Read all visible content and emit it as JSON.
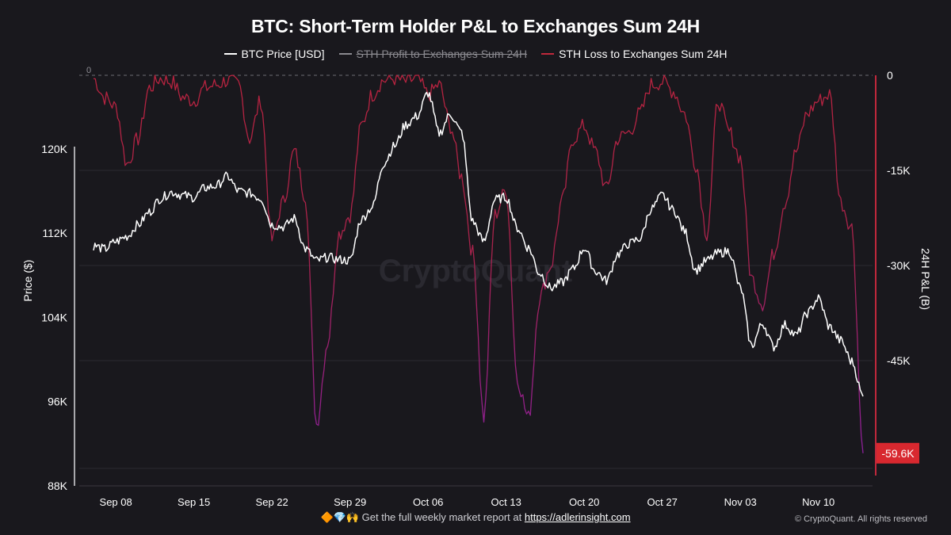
{
  "title": "BTC: Short-Term Holder P&L to Exchanges Sum 24H",
  "legend": [
    {
      "label": "BTC Price [USD]",
      "color": "#ffffff",
      "enabled": true
    },
    {
      "label": "STH Profit to Exchanges Sum 24H",
      "color": "#8b8a90",
      "enabled": false
    },
    {
      "label": "STH Loss to Exchanges Sum 24H",
      "color": "#c0283c",
      "enabled": true
    }
  ],
  "watermark": "CryptoQuant",
  "footer": {
    "emoji": "🔶💎🙌",
    "text": "Get the full weekly market report at",
    "link": "https://adlerinsight.com"
  },
  "copyright": "© CryptoQuant. All rights reserved",
  "chart_data": {
    "type": "line",
    "x_ticks": [
      "Sep 08",
      "Sep 15",
      "Sep 22",
      "Sep 29",
      "Oct 06",
      "Oct 13",
      "Oct 20",
      "Oct 27",
      "Nov 03",
      "Nov 10"
    ],
    "x_range": [
      "2025-09-06",
      "2025-11-14"
    ],
    "y_left": {
      "label": "Price ($)",
      "ticks": [
        "88K",
        "96K",
        "104K",
        "112K",
        "120K"
      ],
      "range": [
        88000,
        127000
      ]
    },
    "y_right": {
      "label": "24H P&L (B)",
      "ticks": [
        "0",
        "-15K",
        "-30K",
        "-45K"
      ],
      "range": [
        -62000,
        0
      ]
    },
    "zero_line_label": "0",
    "last_value_label": "-59.6K",
    "series": [
      {
        "name": "BTC Price [USD]",
        "axis": "left",
        "color": "#ffffff",
        "points": [
          [
            "2025-09-06",
            110800
          ],
          [
            "2025-09-07",
            110500
          ],
          [
            "2025-09-08",
            111200
          ],
          [
            "2025-09-09",
            111700
          ],
          [
            "2025-09-10",
            112800
          ],
          [
            "2025-09-11",
            114000
          ],
          [
            "2025-09-12",
            115300
          ],
          [
            "2025-09-13",
            115900
          ],
          [
            "2025-09-14",
            115600
          ],
          [
            "2025-09-15",
            115400
          ],
          [
            "2025-09-16",
            116300
          ],
          [
            "2025-09-17",
            116500
          ],
          [
            "2025-09-18",
            117400
          ],
          [
            "2025-09-19",
            116000
          ],
          [
            "2025-09-20",
            115800
          ],
          [
            "2025-09-21",
            115300
          ],
          [
            "2025-09-22",
            112800
          ],
          [
            "2025-09-23",
            112600
          ],
          [
            "2025-09-24",
            113400
          ],
          [
            "2025-09-25",
            110500
          ],
          [
            "2025-09-26",
            109400
          ],
          [
            "2025-09-27",
            109700
          ],
          [
            "2025-09-28",
            109500
          ],
          [
            "2025-09-29",
            109400
          ],
          [
            "2025-09-30",
            113300
          ],
          [
            "2025-10-01",
            114500
          ],
          [
            "2025-10-02",
            118600
          ],
          [
            "2025-10-03",
            120300
          ],
          [
            "2025-10-04",
            122300
          ],
          [
            "2025-10-05",
            123100
          ],
          [
            "2025-10-06",
            125300
          ],
          [
            "2025-10-07",
            121500
          ],
          [
            "2025-10-08",
            123300
          ],
          [
            "2025-10-09",
            121600
          ],
          [
            "2025-10-10",
            113100
          ],
          [
            "2025-10-11",
            111200
          ],
          [
            "2025-10-12",
            115200
          ],
          [
            "2025-10-13",
            115400
          ],
          [
            "2025-10-14",
            112500
          ],
          [
            "2025-10-15",
            110600
          ],
          [
            "2025-10-16",
            108200
          ],
          [
            "2025-10-17",
            106800
          ],
          [
            "2025-10-18",
            107300
          ],
          [
            "2025-10-19",
            108600
          ],
          [
            "2025-10-20",
            110600
          ],
          [
            "2025-10-21",
            108400
          ],
          [
            "2025-10-22",
            107500
          ],
          [
            "2025-10-23",
            110000
          ],
          [
            "2025-10-24",
            111000
          ],
          [
            "2025-10-25",
            111500
          ],
          [
            "2025-10-26",
            114300
          ],
          [
            "2025-10-27",
            115600
          ],
          [
            "2025-10-28",
            114200
          ],
          [
            "2025-10-29",
            112200
          ],
          [
            "2025-10-30",
            108500
          ],
          [
            "2025-10-31",
            109400
          ],
          [
            "2025-11-01",
            110100
          ],
          [
            "2025-11-02",
            110300
          ],
          [
            "2025-11-03",
            106800
          ],
          [
            "2025-11-04",
            101300
          ],
          [
            "2025-11-05",
            103400
          ],
          [
            "2025-11-06",
            101200
          ],
          [
            "2025-11-07",
            103300
          ],
          [
            "2025-11-08",
            102300
          ],
          [
            "2025-11-09",
            104400
          ],
          [
            "2025-11-10",
            105800
          ],
          [
            "2025-11-11",
            103100
          ],
          [
            "2025-11-12",
            101800
          ],
          [
            "2025-11-13",
            99800
          ],
          [
            "2025-11-14",
            96500
          ]
        ]
      },
      {
        "name": "STH Loss to Exchanges Sum 24H",
        "axis": "right",
        "color": "#c0283c",
        "points": [
          [
            "2025-09-06",
            -500
          ],
          [
            "2025-09-07",
            -3500
          ],
          [
            "2025-09-08",
            -5000
          ],
          [
            "2025-09-09",
            -14000
          ],
          [
            "2025-09-10",
            -10000
          ],
          [
            "2025-09-11",
            -2000
          ],
          [
            "2025-09-12",
            -500
          ],
          [
            "2025-09-13",
            -1000
          ],
          [
            "2025-09-14",
            -3500
          ],
          [
            "2025-09-15",
            -4000
          ],
          [
            "2025-09-16",
            -2000
          ],
          [
            "2025-09-17",
            -1500
          ],
          [
            "2025-09-18",
            -800
          ],
          [
            "2025-09-19",
            -1500
          ],
          [
            "2025-09-20",
            -10000
          ],
          [
            "2025-09-21",
            -4000
          ],
          [
            "2025-09-22",
            -26000
          ],
          [
            "2025-09-23",
            -20000
          ],
          [
            "2025-09-24",
            -12000
          ],
          [
            "2025-09-25",
            -19000
          ],
          [
            "2025-09-26",
            -55000
          ],
          [
            "2025-09-27",
            -42000
          ],
          [
            "2025-09-28",
            -25000
          ],
          [
            "2025-09-29",
            -22000
          ],
          [
            "2025-09-30",
            -8000
          ],
          [
            "2025-10-01",
            -3000
          ],
          [
            "2025-10-02",
            -800
          ],
          [
            "2025-10-03",
            -500
          ],
          [
            "2025-10-04",
            -1000
          ],
          [
            "2025-10-05",
            -500
          ],
          [
            "2025-10-06",
            -3000
          ],
          [
            "2025-10-07",
            -1500
          ],
          [
            "2025-10-08",
            -8000
          ],
          [
            "2025-10-09",
            -16000
          ],
          [
            "2025-10-10",
            -28000
          ],
          [
            "2025-10-11",
            -54000
          ],
          [
            "2025-10-12",
            -22000
          ],
          [
            "2025-10-13",
            -18000
          ],
          [
            "2025-10-14",
            -48000
          ],
          [
            "2025-10-15",
            -54000
          ],
          [
            "2025-10-16",
            -35000
          ],
          [
            "2025-10-17",
            -30000
          ],
          [
            "2025-10-18",
            -20000
          ],
          [
            "2025-10-19",
            -10000
          ],
          [
            "2025-10-20",
            -8000
          ],
          [
            "2025-10-21",
            -12000
          ],
          [
            "2025-10-22",
            -18000
          ],
          [
            "2025-10-23",
            -10000
          ],
          [
            "2025-10-24",
            -9000
          ],
          [
            "2025-10-25",
            -6000
          ],
          [
            "2025-10-26",
            -1500
          ],
          [
            "2025-10-27",
            -1000
          ],
          [
            "2025-10-28",
            -2500
          ],
          [
            "2025-10-29",
            -6000
          ],
          [
            "2025-10-30",
            -14000
          ],
          [
            "2025-10-31",
            -25000
          ],
          [
            "2025-11-01",
            -4000
          ],
          [
            "2025-11-02",
            -9000
          ],
          [
            "2025-11-03",
            -13000
          ],
          [
            "2025-11-04",
            -32000
          ],
          [
            "2025-11-05",
            -36000
          ],
          [
            "2025-11-06",
            -28000
          ],
          [
            "2025-11-07",
            -20000
          ],
          [
            "2025-11-08",
            -12000
          ],
          [
            "2025-11-09",
            -6000
          ],
          [
            "2025-11-10",
            -4000
          ],
          [
            "2025-11-11",
            -3000
          ],
          [
            "2025-11-12",
            -20000
          ],
          [
            "2025-11-13",
            -24000
          ],
          [
            "2025-11-14",
            -59600
          ]
        ]
      }
    ]
  }
}
